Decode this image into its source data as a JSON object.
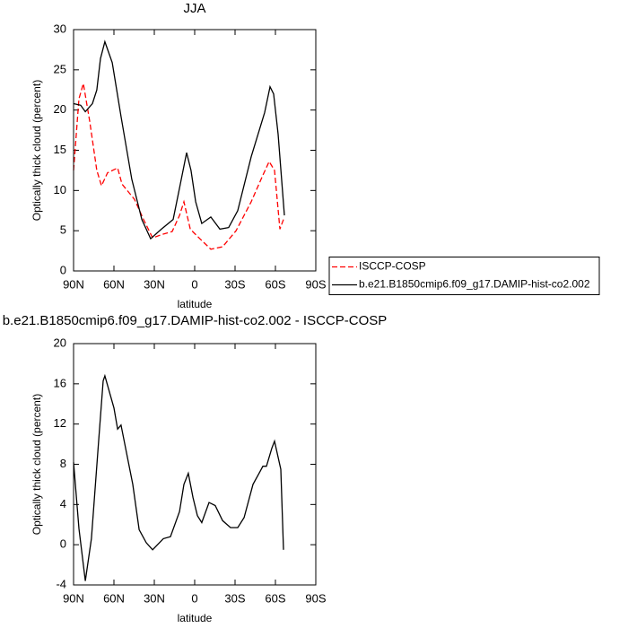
{
  "chart_data": [
    {
      "type": "line",
      "title": "JJA",
      "xlabel": "latitude",
      "ylabel": "Optically thick cloud (percent)",
      "xlim": [
        90,
        -90
      ],
      "xticks": [
        {
          "value": 90,
          "label": "90N"
        },
        {
          "value": 60,
          "label": "60N"
        },
        {
          "value": 30,
          "label": "30N"
        },
        0,
        {
          "value": -30,
          "label": "30S"
        },
        {
          "value": -60,
          "label": "60S"
        },
        {
          "value": -90,
          "label": "90S"
        }
      ],
      "ylim": [
        0,
        30
      ],
      "yticks": [
        0,
        5,
        10,
        15,
        20,
        25,
        30
      ],
      "legend": "right",
      "series": [
        {
          "name": "ISCCP-COSP",
          "color": "#ff0000",
          "dash": true,
          "x": [
            90,
            86,
            82.7,
            78,
            72.7,
            69.3,
            64.7,
            57.3,
            54,
            44.7,
            38,
            31.3,
            24.7,
            16.7,
            11.3,
            8,
            3.3,
            -3.3,
            -12,
            -20.7,
            -30.7,
            -42,
            -50.7,
            -55.3,
            -59.3,
            -63.3,
            -66
          ],
          "values": [
            12.5,
            21.4,
            23.3,
            18.6,
            12.5,
            10.6,
            12.2,
            12.8,
            10.8,
            8.9,
            6.4,
            4.1,
            4.5,
            4.9,
            6.9,
            8.6,
            5.2,
            4.1,
            2.7,
            3,
            5,
            8.6,
            11.9,
            13.6,
            12.5,
            5.2,
            6.4
          ]
        },
        {
          "name": "b.e21.B1850cmip6.f09_g17.DAMIP-hist-co2.002",
          "color": "#000000",
          "dash": false,
          "x": [
            90,
            84.7,
            81.3,
            76,
            72.7,
            70,
            66.7,
            61.3,
            54.7,
            46.7,
            39.3,
            32.7,
            24.7,
            16,
            11.3,
            6,
            2.7,
            -0.7,
            -5.3,
            -12,
            -18.7,
            -25.3,
            -32,
            -42,
            -52,
            -56,
            -58.7,
            -62,
            -66.7
          ],
          "values": [
            20.8,
            20.6,
            19.8,
            20.8,
            22.5,
            26.4,
            28.5,
            25.9,
            19.2,
            11.4,
            6.4,
            4,
            5.2,
            6.4,
            10.3,
            14.7,
            12.5,
            8.6,
            5.9,
            6.7,
            5.2,
            5.4,
            7.5,
            14.2,
            19.7,
            22.9,
            22,
            17,
            6.9
          ]
        }
      ]
    },
    {
      "type": "line",
      "title": "b.e21.B1850cmip6.f09_g17.DAMIP-hist-co2.002 - ISCCP-COSP",
      "xlabel": "latitude",
      "ylabel": "Optically thick cloud (percent)",
      "xlim": [
        90,
        -90
      ],
      "xticks": [
        {
          "value": 90,
          "label": "90N"
        },
        {
          "value": 60,
          "label": "60N"
        },
        {
          "value": 30,
          "label": "30N"
        },
        0,
        {
          "value": -30,
          "label": "30S"
        },
        {
          "value": -60,
          "label": "60S"
        },
        {
          "value": -90,
          "label": "90S"
        }
      ],
      "ylim": [
        -4,
        20
      ],
      "yticks": [
        -4,
        0,
        4,
        8,
        12,
        16,
        20
      ],
      "series": [
        {
          "color": "#000000",
          "dash": false,
          "x": [
            90,
            86,
            81.3,
            76.7,
            71.3,
            68,
            66.7,
            60,
            57.3,
            54.7,
            46,
            41.3,
            36,
            31.3,
            23.3,
            18,
            11.3,
            8,
            4.7,
            1.3,
            -2,
            -5.3,
            -10.7,
            -15.3,
            -20.7,
            -26.7,
            -32,
            -36.7,
            -43.3,
            -48.7,
            -50.7,
            -53.3,
            -57.3,
            -59.3,
            -64,
            -66
          ],
          "values": [
            8.2,
            1.6,
            -3.6,
            0.6,
            10.5,
            16.3,
            16.8,
            13.6,
            11.5,
            11.9,
            6,
            1.5,
            0.2,
            -0.5,
            0.6,
            0.8,
            3.3,
            6,
            7.1,
            4.7,
            2.9,
            2.2,
            4.2,
            3.9,
            2.4,
            1.7,
            1.7,
            2.7,
            6,
            7.3,
            7.8,
            7.8,
            9.6,
            10.3,
            7.5,
            -0.5
          ]
        }
      ]
    }
  ]
}
